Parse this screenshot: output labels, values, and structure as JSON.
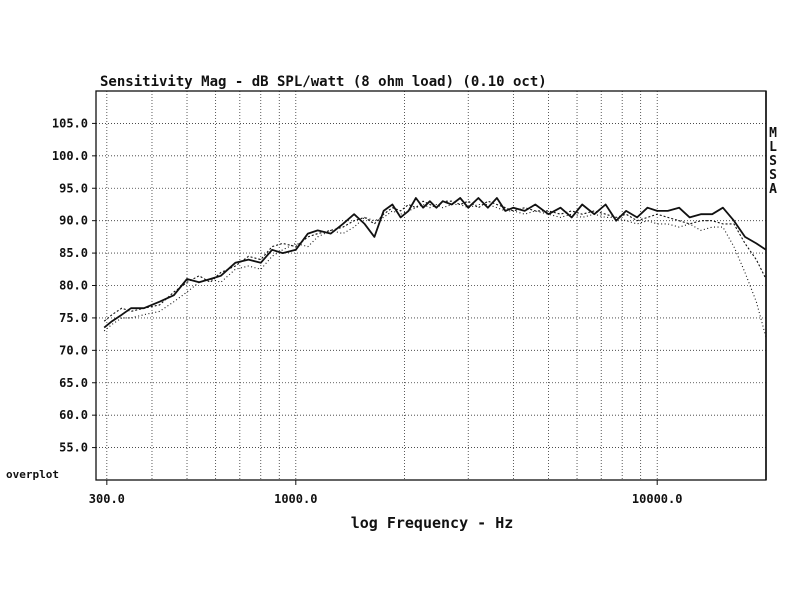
{
  "chart_data": {
    "type": "line",
    "title": "Sensitivity Mag - dB SPL/watt (8 ohm load) (0.10 oct)",
    "xlabel": "log Frequency - Hz",
    "ylabel": "",
    "x_scale": "log",
    "xlim": [
      280,
      20000
    ],
    "ylim": [
      50,
      110
    ],
    "x_tick_labels": [
      {
        "value": 300,
        "label": "300.0"
      },
      {
        "value": 1000,
        "label": "1000.0"
      },
      {
        "value": 10000,
        "label": "10000.0"
      }
    ],
    "y_tick_labels": [
      {
        "value": 105,
        "label": "105.0"
      },
      {
        "value": 100,
        "label": "100.0"
      },
      {
        "value": 95,
        "label": "95.0"
      },
      {
        "value": 90,
        "label": "90.0"
      },
      {
        "value": 85,
        "label": "85.0"
      },
      {
        "value": 80,
        "label": "80.0"
      },
      {
        "value": 75,
        "label": "75.0"
      },
      {
        "value": 70,
        "label": "70.0"
      },
      {
        "value": 65,
        "label": "65.0"
      },
      {
        "value": 60,
        "label": "60.0"
      },
      {
        "value": 55,
        "label": "55.0"
      }
    ],
    "bottom_left_label": "overplot",
    "side_letters": [
      "M",
      "L",
      "S",
      "S",
      "A"
    ],
    "grid": true,
    "series": [
      {
        "style": "solid",
        "x": [
          295,
          310,
          330,
          350,
          380,
          420,
          460,
          500,
          540,
          580,
          620,
          680,
          740,
          800,
          860,
          920,
          1000,
          1080,
          1150,
          1250,
          1350,
          1450,
          1550,
          1650,
          1750,
          1850,
          1950,
          2050,
          2150,
          2250,
          2350,
          2450,
          2550,
          2700,
          2850,
          3000,
          3200,
          3400,
          3600,
          3800,
          4000,
          4300,
          4600,
          5000,
          5400,
          5800,
          6200,
          6700,
          7200,
          7700,
          8200,
          8800,
          9400,
          10000,
          10700,
          11500,
          12300,
          13200,
          14200,
          15200,
          16300,
          17500,
          18800,
          20000
        ],
        "y": [
          73.5,
          74.5,
          75.5,
          76.5,
          76.5,
          77.5,
          78.5,
          81,
          80.5,
          81,
          81.5,
          83.5,
          84,
          83.5,
          85.5,
          85,
          85.5,
          88,
          88.5,
          88,
          89.5,
          91,
          89.5,
          87.5,
          91.5,
          92.5,
          90.5,
          91.5,
          93.5,
          92,
          93,
          92,
          93,
          92.5,
          93.5,
          92,
          93.5,
          92,
          93.5,
          91.5,
          92,
          91.5,
          92.5,
          91,
          92,
          90.5,
          92.5,
          91,
          92.5,
          90,
          91.5,
          90.5,
          92,
          91.5,
          91.5,
          92,
          90.5,
          91,
          91,
          92,
          90,
          87.5,
          86.5,
          85.5
        ]
      },
      {
        "style": "dotted",
        "x": [
          295,
          310,
          330,
          350,
          380,
          420,
          460,
          500,
          540,
          580,
          620,
          680,
          740,
          800,
          860,
          920,
          1000,
          1080,
          1150,
          1250,
          1350,
          1450,
          1550,
          1650,
          1750,
          1850,
          1950,
          2050,
          2150,
          2250,
          2350,
          2450,
          2550,
          2700,
          2850,
          3000,
          3200,
          3400,
          3600,
          3800,
          4000,
          4300,
          4600,
          5000,
          5400,
          5800,
          6200,
          6700,
          7200,
          7700,
          8200,
          8800,
          9400,
          10000,
          10700,
          11500,
          12300,
          13200,
          14200,
          15200,
          16300,
          17500,
          18800,
          20000
        ],
        "y": [
          74.5,
          75.5,
          76.5,
          76,
          76.5,
          77,
          79,
          80.5,
          81.5,
          80.5,
          82,
          83,
          84.5,
          84,
          86,
          86.5,
          86,
          87.5,
          88,
          88.5,
          89,
          90,
          90.5,
          89.5,
          91,
          92,
          91.5,
          92.5,
          92,
          93,
          92.5,
          92,
          93,
          93,
          92.5,
          93,
          92,
          93,
          92.5,
          92,
          91.5,
          92,
          91.5,
          91.5,
          91,
          91.5,
          91,
          91.5,
          91,
          90.5,
          91,
          90,
          90.5,
          91,
          90.5,
          90,
          89.5,
          90,
          90,
          89.5,
          89.5,
          86.5,
          84,
          81
        ]
      },
      {
        "style": "dotted",
        "x": [
          295,
          310,
          330,
          350,
          380,
          420,
          460,
          500,
          540,
          580,
          620,
          680,
          740,
          800,
          860,
          920,
          1000,
          1080,
          1150,
          1250,
          1350,
          1450,
          1550,
          1650,
          1750,
          1850,
          1950,
          2050,
          2150,
          2250,
          2350,
          2450,
          2550,
          2700,
          2850,
          3000,
          3200,
          3400,
          3600,
          3800,
          4000,
          4300,
          4600,
          5000,
          5400,
          5800,
          6200,
          6700,
          7200,
          7700,
          8200,
          8800,
          9400,
          10000,
          10700,
          11500,
          12300,
          13200,
          14200,
          15200,
          16300,
          17500,
          18800,
          20000
        ],
        "y": [
          73,
          74,
          75,
          75,
          75.5,
          76,
          77.5,
          79,
          80.5,
          81,
          80.5,
          82.5,
          83,
          82.5,
          84.5,
          85.5,
          86.5,
          86,
          87.5,
          88.5,
          88,
          89,
          90.5,
          90,
          90.5,
          91.5,
          91,
          91.5,
          92,
          92.5,
          92,
          92.5,
          92,
          92.5,
          92.5,
          92,
          92.5,
          92.5,
          92,
          91.5,
          91.5,
          91,
          91.5,
          91,
          90.5,
          91,
          90.5,
          91,
          90.5,
          90.5,
          90,
          89.5,
          90,
          89.5,
          89.5,
          89,
          89.5,
          88.5,
          89,
          89,
          86,
          82,
          77.5,
          72
        ]
      }
    ]
  }
}
